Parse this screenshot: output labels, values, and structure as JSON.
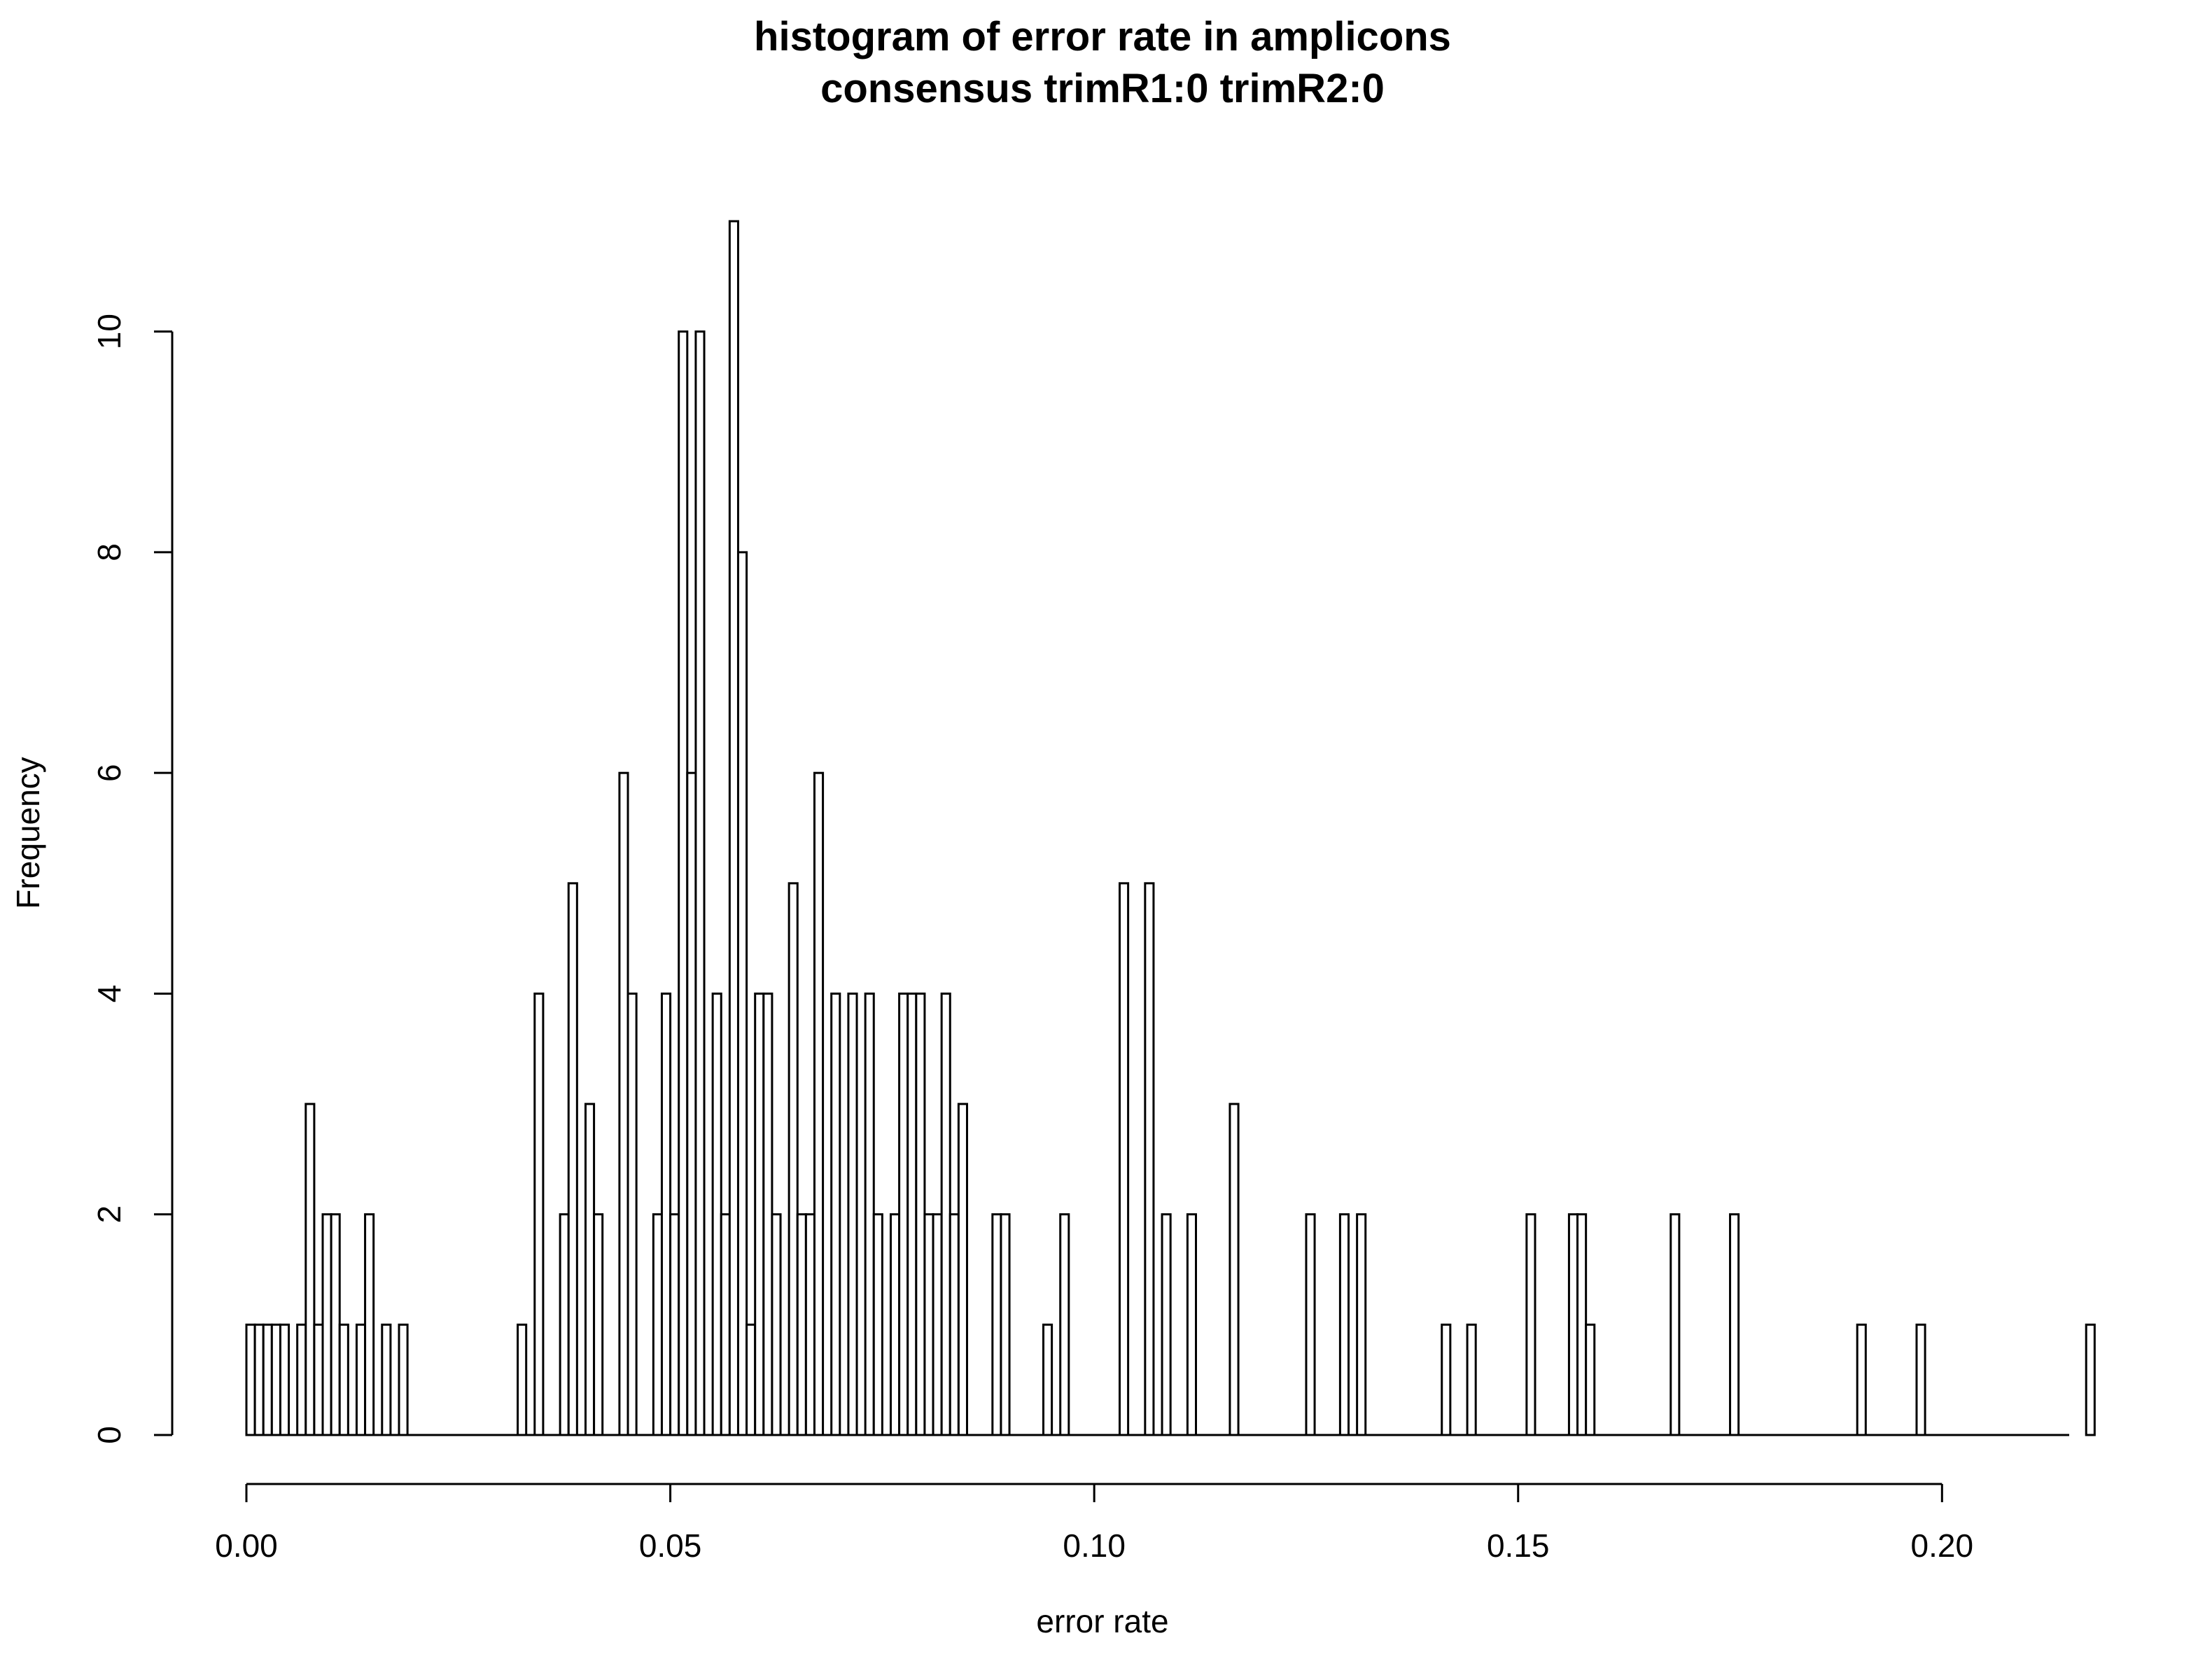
{
  "chart_data": {
    "type": "bar",
    "title": "histogram of error rate in amplicons",
    "subtitle": "consensus trimR1:0 trimR2:0",
    "xlabel": "error rate",
    "ylabel": "Frequency",
    "xlim": [
      0.0,
      0.215
    ],
    "ylim": [
      0,
      11
    ],
    "x_ticks": [
      0.0,
      0.05,
      0.1,
      0.15,
      0.2
    ],
    "x_tick_labels": [
      "0.00",
      "0.05",
      "0.10",
      "0.15",
      "0.20"
    ],
    "y_ticks": [
      0,
      2,
      4,
      6,
      8,
      10
    ],
    "y_tick_labels": [
      "0",
      "2",
      "4",
      "6",
      "8",
      "10"
    ],
    "bin_width": 0.001,
    "grid": false,
    "counts": [
      1,
      1,
      1,
      1,
      1,
      0,
      1,
      3,
      1,
      2,
      2,
      1,
      0,
      1,
      2,
      0,
      1,
      0,
      1,
      0,
      0,
      0,
      0,
      0,
      0,
      0,
      0,
      0,
      0,
      0,
      0,
      0,
      1,
      0,
      4,
      0,
      0,
      2,
      5,
      0,
      3,
      2,
      0,
      0,
      6,
      4,
      0,
      0,
      2,
      4,
      2,
      10,
      6,
      10,
      0,
      4,
      2,
      11,
      8,
      1,
      4,
      4,
      2,
      0,
      5,
      2,
      2,
      6,
      0,
      4,
      0,
      4,
      0,
      4,
      2,
      0,
      2,
      4,
      4,
      4,
      2,
      2,
      4,
      2,
      3,
      0,
      0,
      0,
      2,
      2,
      0,
      0,
      0,
      0,
      1,
      0,
      2,
      0,
      0,
      0,
      0,
      0,
      0,
      5,
      0,
      0,
      5,
      0,
      2,
      0,
      0,
      2,
      0,
      0,
      0,
      0,
      3,
      0,
      0,
      0,
      0,
      0,
      0,
      0,
      0,
      2,
      0,
      0,
      0,
      2,
      0,
      2,
      0,
      0,
      0,
      0,
      0,
      0,
      0,
      0,
      0,
      1,
      0,
      0,
      1,
      0,
      0,
      0,
      0,
      0,
      0,
      2,
      0,
      0,
      0,
      0,
      2,
      2,
      1,
      0,
      0,
      0,
      0,
      0,
      0,
      0,
      0,
      0,
      2,
      0,
      0,
      0,
      0,
      0,
      0,
      2,
      0,
      0,
      0,
      0,
      0,
      0,
      0,
      0,
      0,
      0,
      0,
      0,
      0,
      0,
      1,
      0,
      0,
      0,
      0,
      0,
      0,
      1,
      0,
      0,
      0,
      0,
      0,
      0,
      0,
      0,
      0,
      0,
      0,
      0,
      0,
      0,
      0,
      0,
      0,
      0,
      0,
      1
    ]
  }
}
